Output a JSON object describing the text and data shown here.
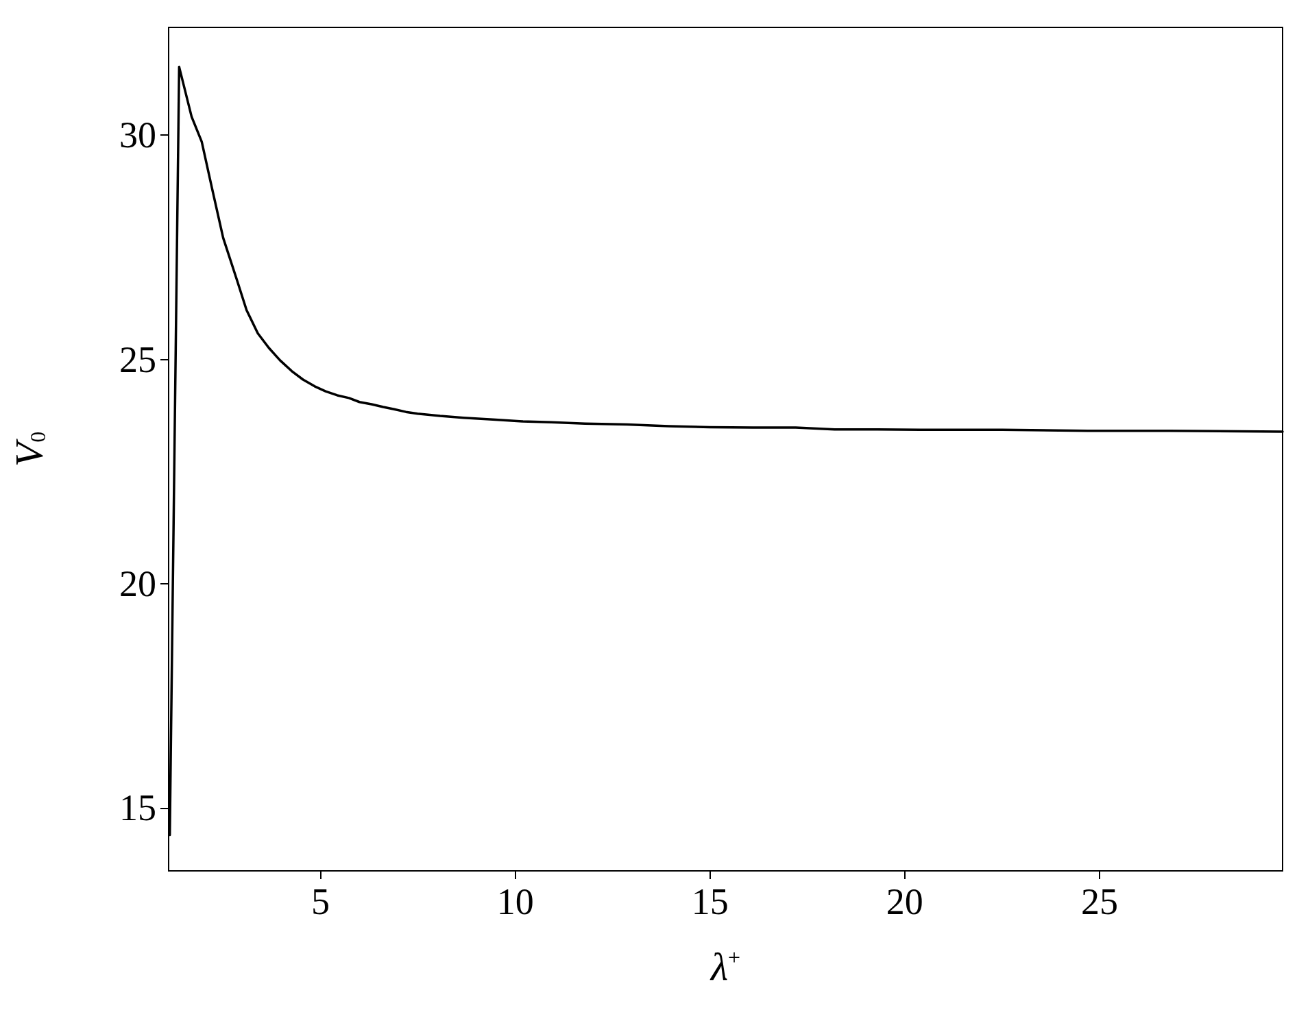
{
  "chart_data": {
    "type": "line",
    "xlabel": "λ$^{+}$",
    "ylabel": "V$_{0}$",
    "xlim": [
      1.1,
      29.7
    ],
    "ylim": [
      13.6,
      32.4
    ],
    "xticks": [
      5,
      10,
      15,
      20,
      25
    ],
    "yticks": [
      15,
      20,
      25,
      30
    ],
    "grid": false,
    "marker": "none",
    "line_style": "solid",
    "series": [
      {
        "color": "#000000",
        "x": [
          1.13,
          1.37,
          1.69,
          1.95,
          2.22,
          2.5,
          2.85,
          3.1,
          3.39,
          3.67,
          3.96,
          4.26,
          4.55,
          4.85,
          5.13,
          5.43,
          5.73,
          6.0,
          6.31,
          6.61,
          6.89,
          7.19,
          7.49,
          8.07,
          8.67,
          9.42,
          10.18,
          10.93,
          11.79,
          12.87,
          13.94,
          15.0,
          16.1,
          17.2,
          18.2,
          19.3,
          20.4,
          22.5,
          24.7,
          26.8,
          29.7
        ],
        "values": [
          14.4,
          31.52,
          30.41,
          29.85,
          28.79,
          27.71,
          26.78,
          26.1,
          25.58,
          25.26,
          24.98,
          24.74,
          24.55,
          24.4,
          24.29,
          24.2,
          24.14,
          24.05,
          24.0,
          23.94,
          23.89,
          23.83,
          23.79,
          23.74,
          23.7,
          23.66,
          23.62,
          23.6,
          23.57,
          23.55,
          23.51,
          23.49,
          23.48,
          23.48,
          23.44,
          23.44,
          23.43,
          23.43,
          23.41,
          23.41,
          23.39
        ]
      }
    ]
  }
}
